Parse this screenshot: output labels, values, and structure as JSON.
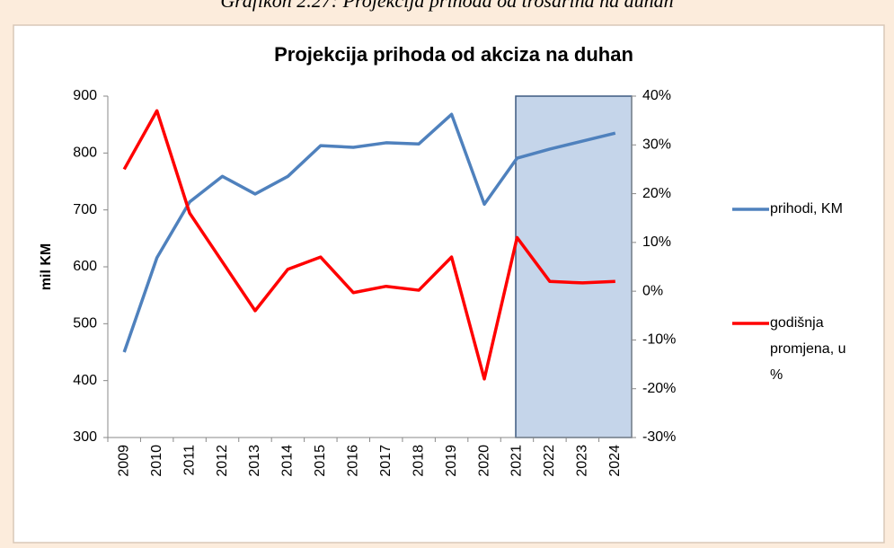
{
  "caption": "Grafikon 2.27: Projekcija prihoda od trošarina na duhan",
  "chart_data": {
    "type": "line",
    "title": "Projekcija prihoda od akciza na duhan",
    "y_label": "mil KM",
    "categories": [
      "2009",
      "2010",
      "2011",
      "2012",
      "2013",
      "2014",
      "2015",
      "2016",
      "2017",
      "2018",
      "2019",
      "2020",
      "2021",
      "2022",
      "2023",
      "2024"
    ],
    "series": [
      {
        "name": "prihodi, KM",
        "color": "#4f81bd",
        "values": [
          450,
          616,
          714,
          759,
          728,
          759,
          813,
          810,
          818,
          816,
          868,
          710,
          791,
          807,
          821,
          835
        ]
      },
      {
        "name": "godišnja promjena, u %",
        "color": "#ff0000",
        "axis": "y2",
        "values": [
          25,
          37,
          16,
          6,
          -4,
          4.5,
          7,
          -0.3,
          1,
          0.2,
          7,
          -18,
          11,
          2,
          1.7,
          2
        ]
      }
    ],
    "ylim": [
      300,
      900
    ],
    "yticks": [
      300,
      400,
      500,
      600,
      700,
      800,
      900
    ],
    "y2lim": [
      -30,
      40
    ],
    "y2ticks": [
      {
        "value": -30,
        "label": "-30%"
      },
      {
        "value": -20,
        "label": "-20%"
      },
      {
        "value": -10,
        "label": "-10%"
      },
      {
        "value": 0,
        "label": "0%"
      },
      {
        "value": 10,
        "label": "10%"
      },
      {
        "value": 20,
        "label": "20%"
      },
      {
        "value": 30,
        "label": "30%"
      },
      {
        "value": 40,
        "label": "40%"
      }
    ],
    "legend": "right"
  }
}
